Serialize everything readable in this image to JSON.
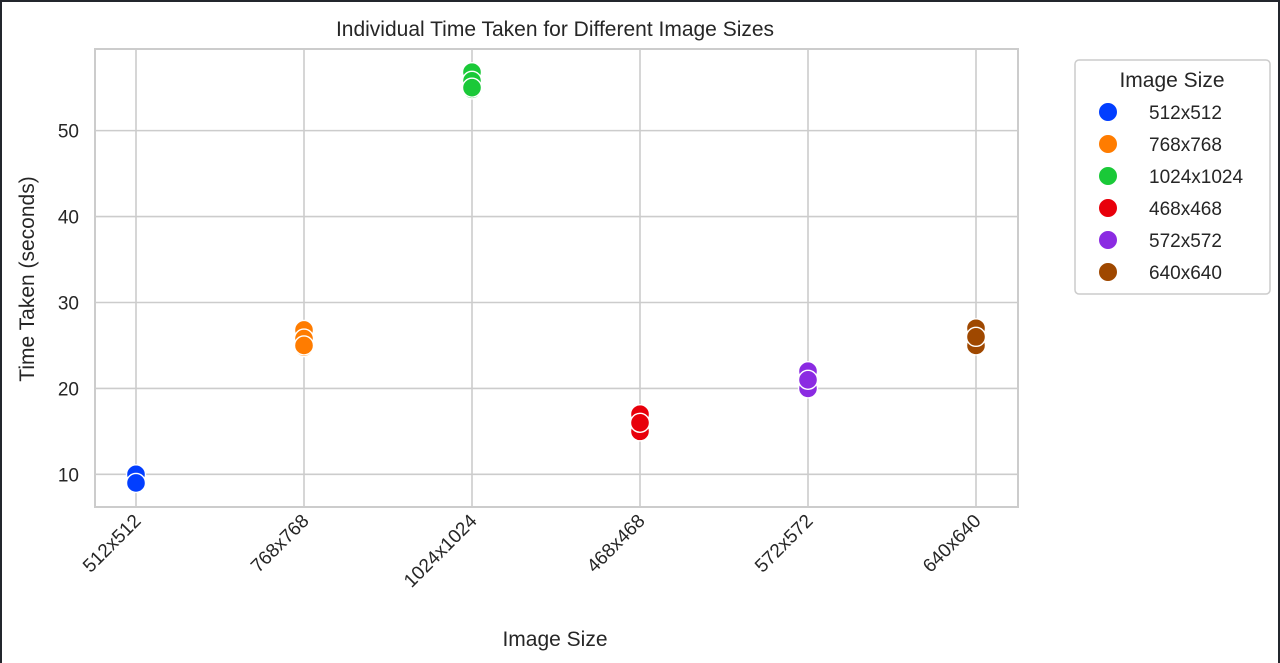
{
  "chart_data": {
    "type": "scatter",
    "title": "Individual Time Taken for Different Image Sizes",
    "xlabel": "Image Size",
    "ylabel": "Time Taken (seconds)",
    "categories": [
      "512x512",
      "768x768",
      "1024x1024",
      "468x468",
      "572x572",
      "640x640"
    ],
    "ylim": [
      6.2,
      59.5
    ],
    "yticks": [
      10,
      20,
      30,
      40,
      50
    ],
    "grid": true,
    "legend": {
      "title": "Image Size",
      "placement": "outside-right-top"
    },
    "series": [
      {
        "name": "512x512",
        "color": "#023eff",
        "values": [
          9.0,
          10.0,
          9.0
        ]
      },
      {
        "name": "768x768",
        "color": "#ff7c00",
        "values": [
          24.8,
          26.8,
          25.8,
          25.0
        ]
      },
      {
        "name": "1024x1024",
        "color": "#1ac938",
        "values": [
          54.8,
          56.8,
          55.8,
          55.0
        ]
      },
      {
        "name": "468x468",
        "color": "#e8000b",
        "values": [
          15.0,
          17.0,
          16.0
        ]
      },
      {
        "name": "572x572",
        "color": "#8b2be2",
        "values": [
          20.0,
          22.0,
          21.0
        ]
      },
      {
        "name": "640x640",
        "color": "#9f4800",
        "values": [
          25.0,
          27.0,
          26.0
        ]
      }
    ]
  }
}
